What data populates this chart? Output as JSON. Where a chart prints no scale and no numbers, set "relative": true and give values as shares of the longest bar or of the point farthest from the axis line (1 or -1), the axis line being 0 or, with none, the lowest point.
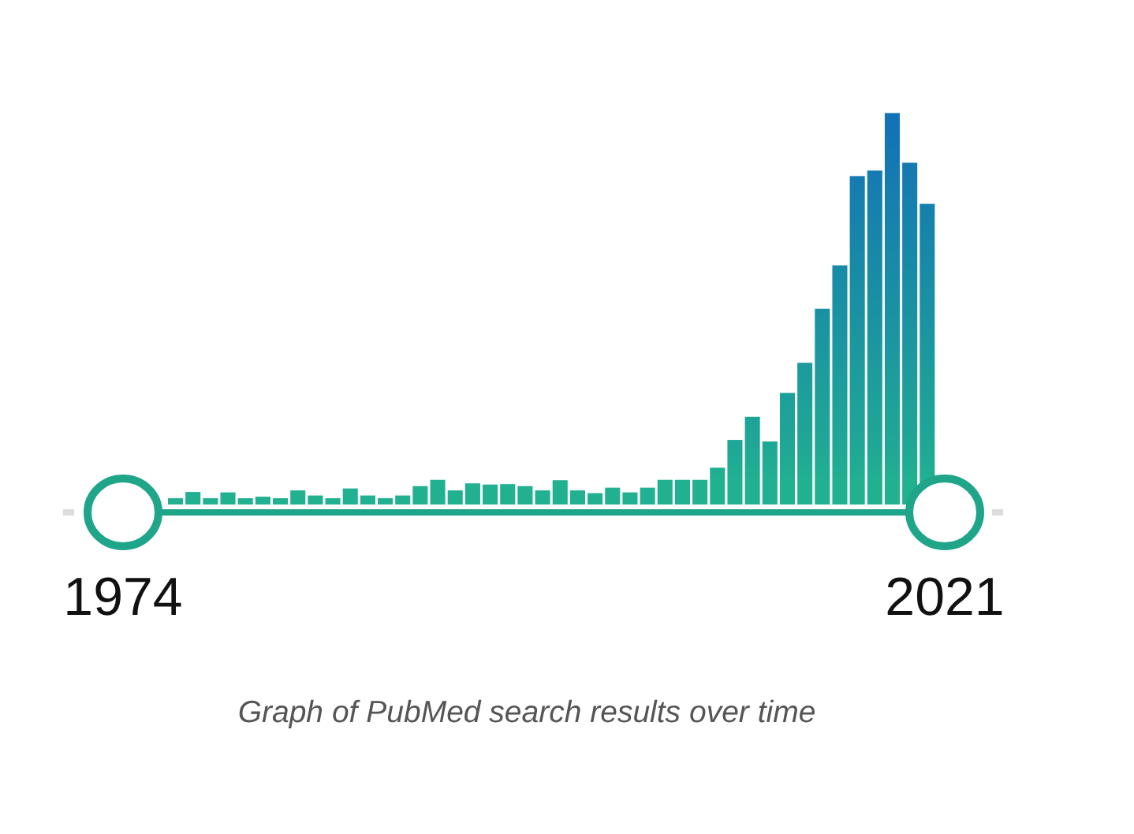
{
  "chart_data": {
    "type": "bar",
    "relative": true,
    "x": [
      1977,
      1978,
      1979,
      1980,
      1981,
      1982,
      1983,
      1984,
      1985,
      1986,
      1987,
      1988,
      1989,
      1990,
      1991,
      1992,
      1993,
      1994,
      1995,
      1996,
      1997,
      1998,
      1999,
      2000,
      2001,
      2002,
      2003,
      2004,
      2005,
      2006,
      2007,
      2008,
      2009,
      2010,
      2011,
      2012,
      2013,
      2014,
      2015,
      2016,
      2017,
      2018,
      2019,
      2020
    ],
    "values": [
      0.016,
      0.032,
      0.016,
      0.031,
      0.016,
      0.02,
      0.016,
      0.036,
      0.023,
      0.016,
      0.041,
      0.023,
      0.016,
      0.023,
      0.047,
      0.063,
      0.036,
      0.054,
      0.051,
      0.052,
      0.047,
      0.036,
      0.062,
      0.036,
      0.029,
      0.043,
      0.031,
      0.043,
      0.063,
      0.063,
      0.063,
      0.094,
      0.165,
      0.224,
      0.161,
      0.285,
      0.362,
      0.5,
      0.611,
      0.839,
      0.853,
      1,
      0.873,
      0.768
    ],
    "colors": [
      "#21b090",
      "#21b090",
      "#21b090",
      "#21b090",
      "#21b090",
      "#21b090",
      "#21b090",
      "#21b090",
      "#21b090",
      "#21b090",
      "#21b090",
      "#21b090",
      "#21b090",
      "#21b090",
      "#21b090",
      "#21b090",
      "#21b090",
      "#21b090",
      "#21b090",
      "#21b090",
      "#21b090",
      "#21b090",
      "#21b090",
      "#21b090",
      "#21b090",
      "#21b090",
      "#21b090",
      "#21b090",
      "#21b090",
      "#21b090",
      "#21b090",
      "#20ad92",
      "#1fa696",
      "#1ea398",
      "#1fa696",
      "#1d9f9a",
      "#1c9a9e",
      "#1a91a3",
      "#188aa7",
      "#157bb1",
      "#147ab1",
      "#1271b7",
      "#1479b2",
      "#1680ae"
    ],
    "xlim": [
      1974,
      2021
    ],
    "xticks": [
      1974,
      2021
    ],
    "annotations": [
      "Graph of PubMed search results over time"
    ]
  }
}
